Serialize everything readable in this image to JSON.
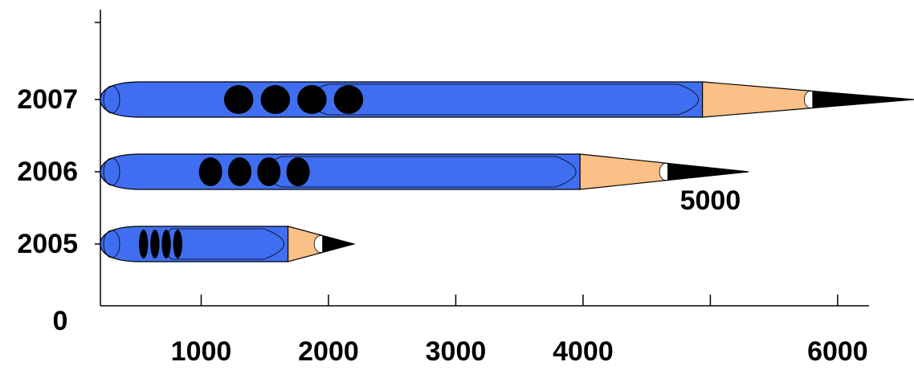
{
  "chart_data": {
    "type": "pencil-bar",
    "categories": [
      "2005",
      "2006",
      "2007"
    ],
    "values": [
      2200,
      5300,
      6600
    ],
    "color": "#3f6ef0",
    "xlim": [
      0,
      6600
    ],
    "xticks": [
      0,
      1000,
      2000,
      3000,
      4000,
      5000,
      6000
    ]
  }
}
